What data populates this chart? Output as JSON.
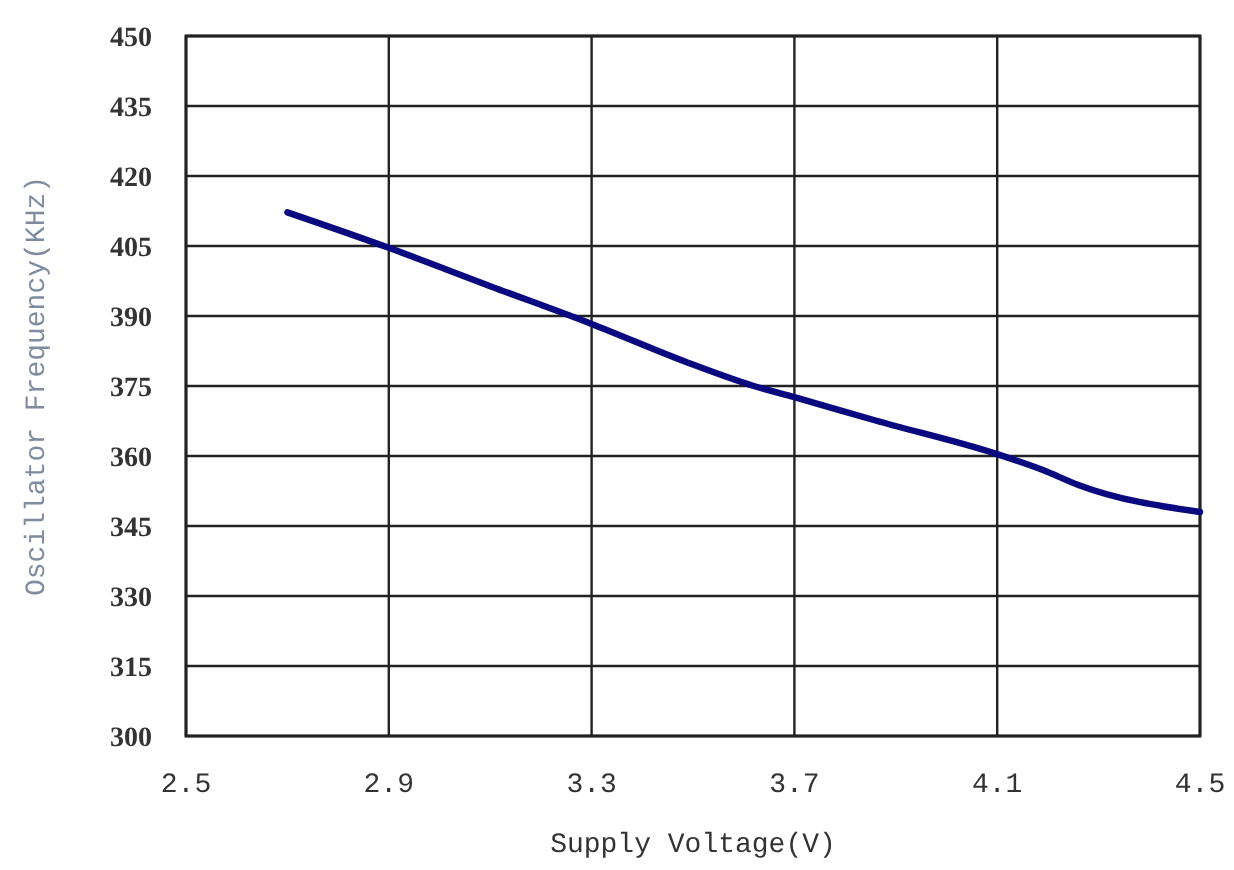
{
  "chart_data": {
    "type": "line",
    "xlabel": "Supply Voltage(V)",
    "ylabel": "Oscillator Frequency(KHz)",
    "xlim": [
      2.5,
      4.5
    ],
    "xticks": [
      2.5,
      2.9,
      3.3,
      3.7,
      4.1,
      4.5
    ],
    "ylim": [
      300,
      450
    ],
    "yticks": [
      300,
      315,
      330,
      345,
      360,
      375,
      390,
      405,
      420,
      435,
      450
    ],
    "grid": true,
    "series": [
      {
        "color": "#0a0a80",
        "x": [
          2.7,
          2.9,
          3.1,
          3.3,
          3.49,
          3.62,
          3.7,
          3.86,
          4.1,
          4.19,
          4.26,
          4.5
        ],
        "values": [
          412.2,
          404.6,
          396.4,
          388.3,
          380,
          375,
          372.6,
          367.6,
          360.4,
          357,
          353.8,
          348
        ]
      }
    ]
  }
}
